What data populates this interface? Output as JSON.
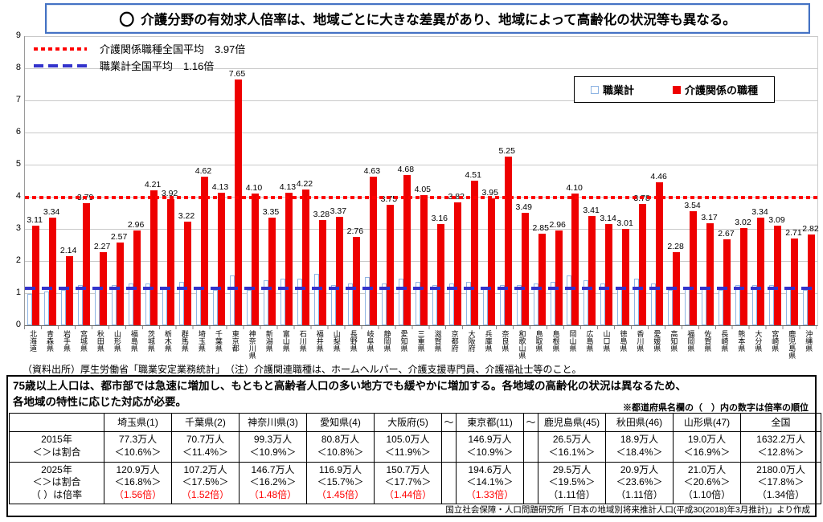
{
  "title": {
    "prefix": "〇",
    "text": "介護分野の有効求人倍率は、地域ごとに大きな差異があり、地域によって高齢化の状況等も異なる。"
  },
  "colors": {
    "care_bar": "#ee0000",
    "all_jobs_bar_outline": "#8eb4e3",
    "care_avg_line": "#ff0000",
    "all_jobs_avg_line": "#3333cc",
    "title_border": "#4472c4"
  },
  "chart_data": {
    "type": "bar",
    "title": "",
    "xlabel": "",
    "ylabel": "",
    "ylim": [
      0,
      9
    ],
    "yticks": [
      0,
      1,
      2,
      3,
      4,
      5,
      6,
      7,
      8,
      9
    ],
    "grid": true,
    "legend_position": "top-right",
    "categories": [
      "北海道",
      "青森県",
      "岩手県",
      "宮城県",
      "秋田県",
      "山形県",
      "福島県",
      "茨城県",
      "栃木県",
      "群馬県",
      "埼玉県",
      "千葉県",
      "東京都",
      "神奈川県",
      "新潟県",
      "富山県",
      "石川県",
      "福井県",
      "山梨県",
      "長野県",
      "岐阜県",
      "静岡県",
      "愛知県",
      "三重県",
      "滋賀県",
      "京都府",
      "大阪府",
      "兵庫県",
      "奈良県",
      "和歌山県",
      "鳥取県",
      "島根県",
      "岡山県",
      "広島県",
      "山口県",
      "徳島県",
      "香川県",
      "愛媛県",
      "高知県",
      "福岡県",
      "佐賀県",
      "長崎県",
      "熊本県",
      "大分県",
      "宮崎県",
      "鹿児島県",
      "沖縄県"
    ],
    "series": [
      {
        "name": "職業計",
        "fill": "#ffffff",
        "border": "#8eb4e3",
        "labels_shown": false,
        "values_estimated": [
          0.98,
          1.05,
          1.1,
          1.25,
          1.2,
          1.25,
          1.3,
          1.3,
          1.15,
          1.35,
          1.2,
          1.1,
          1.55,
          1.1,
          1.4,
          1.45,
          1.45,
          1.6,
          1.25,
          1.3,
          1.5,
          1.3,
          1.45,
          1.35,
          1.25,
          1.3,
          1.35,
          1.15,
          1.25,
          1.25,
          1.3,
          1.35,
          1.55,
          1.4,
          1.3,
          1.2,
          1.45,
          1.3,
          1.1,
          1.2,
          1.2,
          1.1,
          1.25,
          1.25,
          1.25,
          1.2,
          1.1
        ]
      },
      {
        "name": "介護関係の職種",
        "fill": "#ee0000",
        "labels_shown": true,
        "values": [
          3.11,
          3.34,
          2.14,
          3.79,
          2.27,
          2.57,
          2.96,
          4.21,
          3.92,
          3.22,
          4.62,
          4.13,
          7.65,
          4.1,
          3.35,
          4.13,
          4.22,
          3.28,
          3.37,
          2.76,
          4.63,
          3.75,
          4.68,
          4.05,
          3.16,
          3.82,
          4.51,
          3.95,
          5.25,
          3.49,
          2.85,
          2.96,
          4.1,
          3.41,
          3.14,
          3.01,
          3.78,
          4.46,
          2.28,
          3.54,
          3.17,
          2.67,
          3.02,
          3.34,
          3.09,
          2.71,
          2.82
        ]
      }
    ],
    "reference_lines": [
      {
        "label": "介護関係職種全国平均　3.97倍",
        "value": 3.97,
        "color": "#ff0000",
        "style": "dotted"
      },
      {
        "label": "職業計全国平均　1.16倍",
        "value": 1.16,
        "color": "#3333cc",
        "style": "dashed"
      }
    ]
  },
  "source_note": "（資料出所）厚生労働省「職業安定業務統計」　（注）介護関連職種は、ホームヘルパー、介護支援専門員、介護福祉士等のこと。",
  "table_section": {
    "intro": "75歳以上人口は、都市部では急速に増加し、もともと高齢者人口の多い地方でも緩やかに増加する。各地域の高齢化の状況は異なるため、各地域の特性に応じた対応が必要。",
    "note": "※都道府県名欄の（　）内の数字は倍率の順位",
    "columns": [
      "",
      "埼玉県(1)",
      "千葉県(2)",
      "神奈川県(3)",
      "愛知県(4)",
      "大阪府(5)",
      "～",
      "東京都(11)",
      "～",
      "鹿児島県(45)",
      "秋田県(46)",
      "山形県(47)",
      "全国"
    ],
    "rows": [
      {
        "label_lines": [
          "2015年",
          "＜＞は割合"
        ],
        "cells": [
          {
            "pop": "77.3万人",
            "share": "＜10.6%＞",
            "ratio": "",
            "ratio_red": false
          },
          {
            "pop": "70.7万人",
            "share": "＜11.4%＞",
            "ratio": "",
            "ratio_red": false
          },
          {
            "pop": "99.3万人",
            "share": "＜10.9%＞",
            "ratio": "",
            "ratio_red": false
          },
          {
            "pop": "80.8万人",
            "share": "＜10.8%＞",
            "ratio": "",
            "ratio_red": false
          },
          {
            "pop": "105.0万人",
            "share": "＜11.9%＞",
            "ratio": "",
            "ratio_red": false
          },
          {
            "pop": "",
            "share": "",
            "ratio": "",
            "ratio_red": false
          },
          {
            "pop": "146.9万人",
            "share": "＜10.9%＞",
            "ratio": "",
            "ratio_red": false
          },
          {
            "pop": "",
            "share": "",
            "ratio": "",
            "ratio_red": false
          },
          {
            "pop": "26.5万人",
            "share": "＜16.1%＞",
            "ratio": "",
            "ratio_red": false
          },
          {
            "pop": "18.9万人",
            "share": "＜18.4%＞",
            "ratio": "",
            "ratio_red": false
          },
          {
            "pop": "19.0万人",
            "share": "＜16.9%＞",
            "ratio": "",
            "ratio_red": false
          },
          {
            "pop": "1632.2万人",
            "share": "＜12.8%＞",
            "ratio": "",
            "ratio_red": false
          }
        ]
      },
      {
        "label_lines": [
          "2025年",
          "＜＞は割合",
          "（ ）は倍率"
        ],
        "cells": [
          {
            "pop": "120.9万人",
            "share": "＜16.8%＞",
            "ratio": "（1.56倍）",
            "ratio_red": true
          },
          {
            "pop": "107.2万人",
            "share": "＜17.5%＞",
            "ratio": "（1.52倍）",
            "ratio_red": true
          },
          {
            "pop": "146.7万人",
            "share": "＜16.2%＞",
            "ratio": "（1.48倍）",
            "ratio_red": true
          },
          {
            "pop": "116.9万人",
            "share": "＜15.7%＞",
            "ratio": "（1.45倍）",
            "ratio_red": true
          },
          {
            "pop": "150.7万人",
            "share": "＜17.7%＞",
            "ratio": "（1.44倍）",
            "ratio_red": true
          },
          {
            "pop": "",
            "share": "",
            "ratio": "",
            "ratio_red": false
          },
          {
            "pop": "194.6万人",
            "share": "＜14.1%＞",
            "ratio": "（1.33倍）",
            "ratio_red": true
          },
          {
            "pop": "",
            "share": "",
            "ratio": "",
            "ratio_red": false
          },
          {
            "pop": "29.5万人",
            "share": "＜19.5%＞",
            "ratio": "（1.11倍）",
            "ratio_red": false
          },
          {
            "pop": "20.9万人",
            "share": "＜23.6%＞",
            "ratio": "（1.11倍）",
            "ratio_red": false
          },
          {
            "pop": "21.0万人",
            "share": "＜20.6%＞",
            "ratio": "（1.10倍）",
            "ratio_red": false
          },
          {
            "pop": "2180.0万人",
            "share": "＜17.8%＞",
            "ratio": "（1.34倍）",
            "ratio_red": false
          }
        ]
      }
    ],
    "footer": "国立社会保障・人口問題研究所「日本の地域別将来推計人口(平成30(2018)年3月推計)」より作成"
  }
}
